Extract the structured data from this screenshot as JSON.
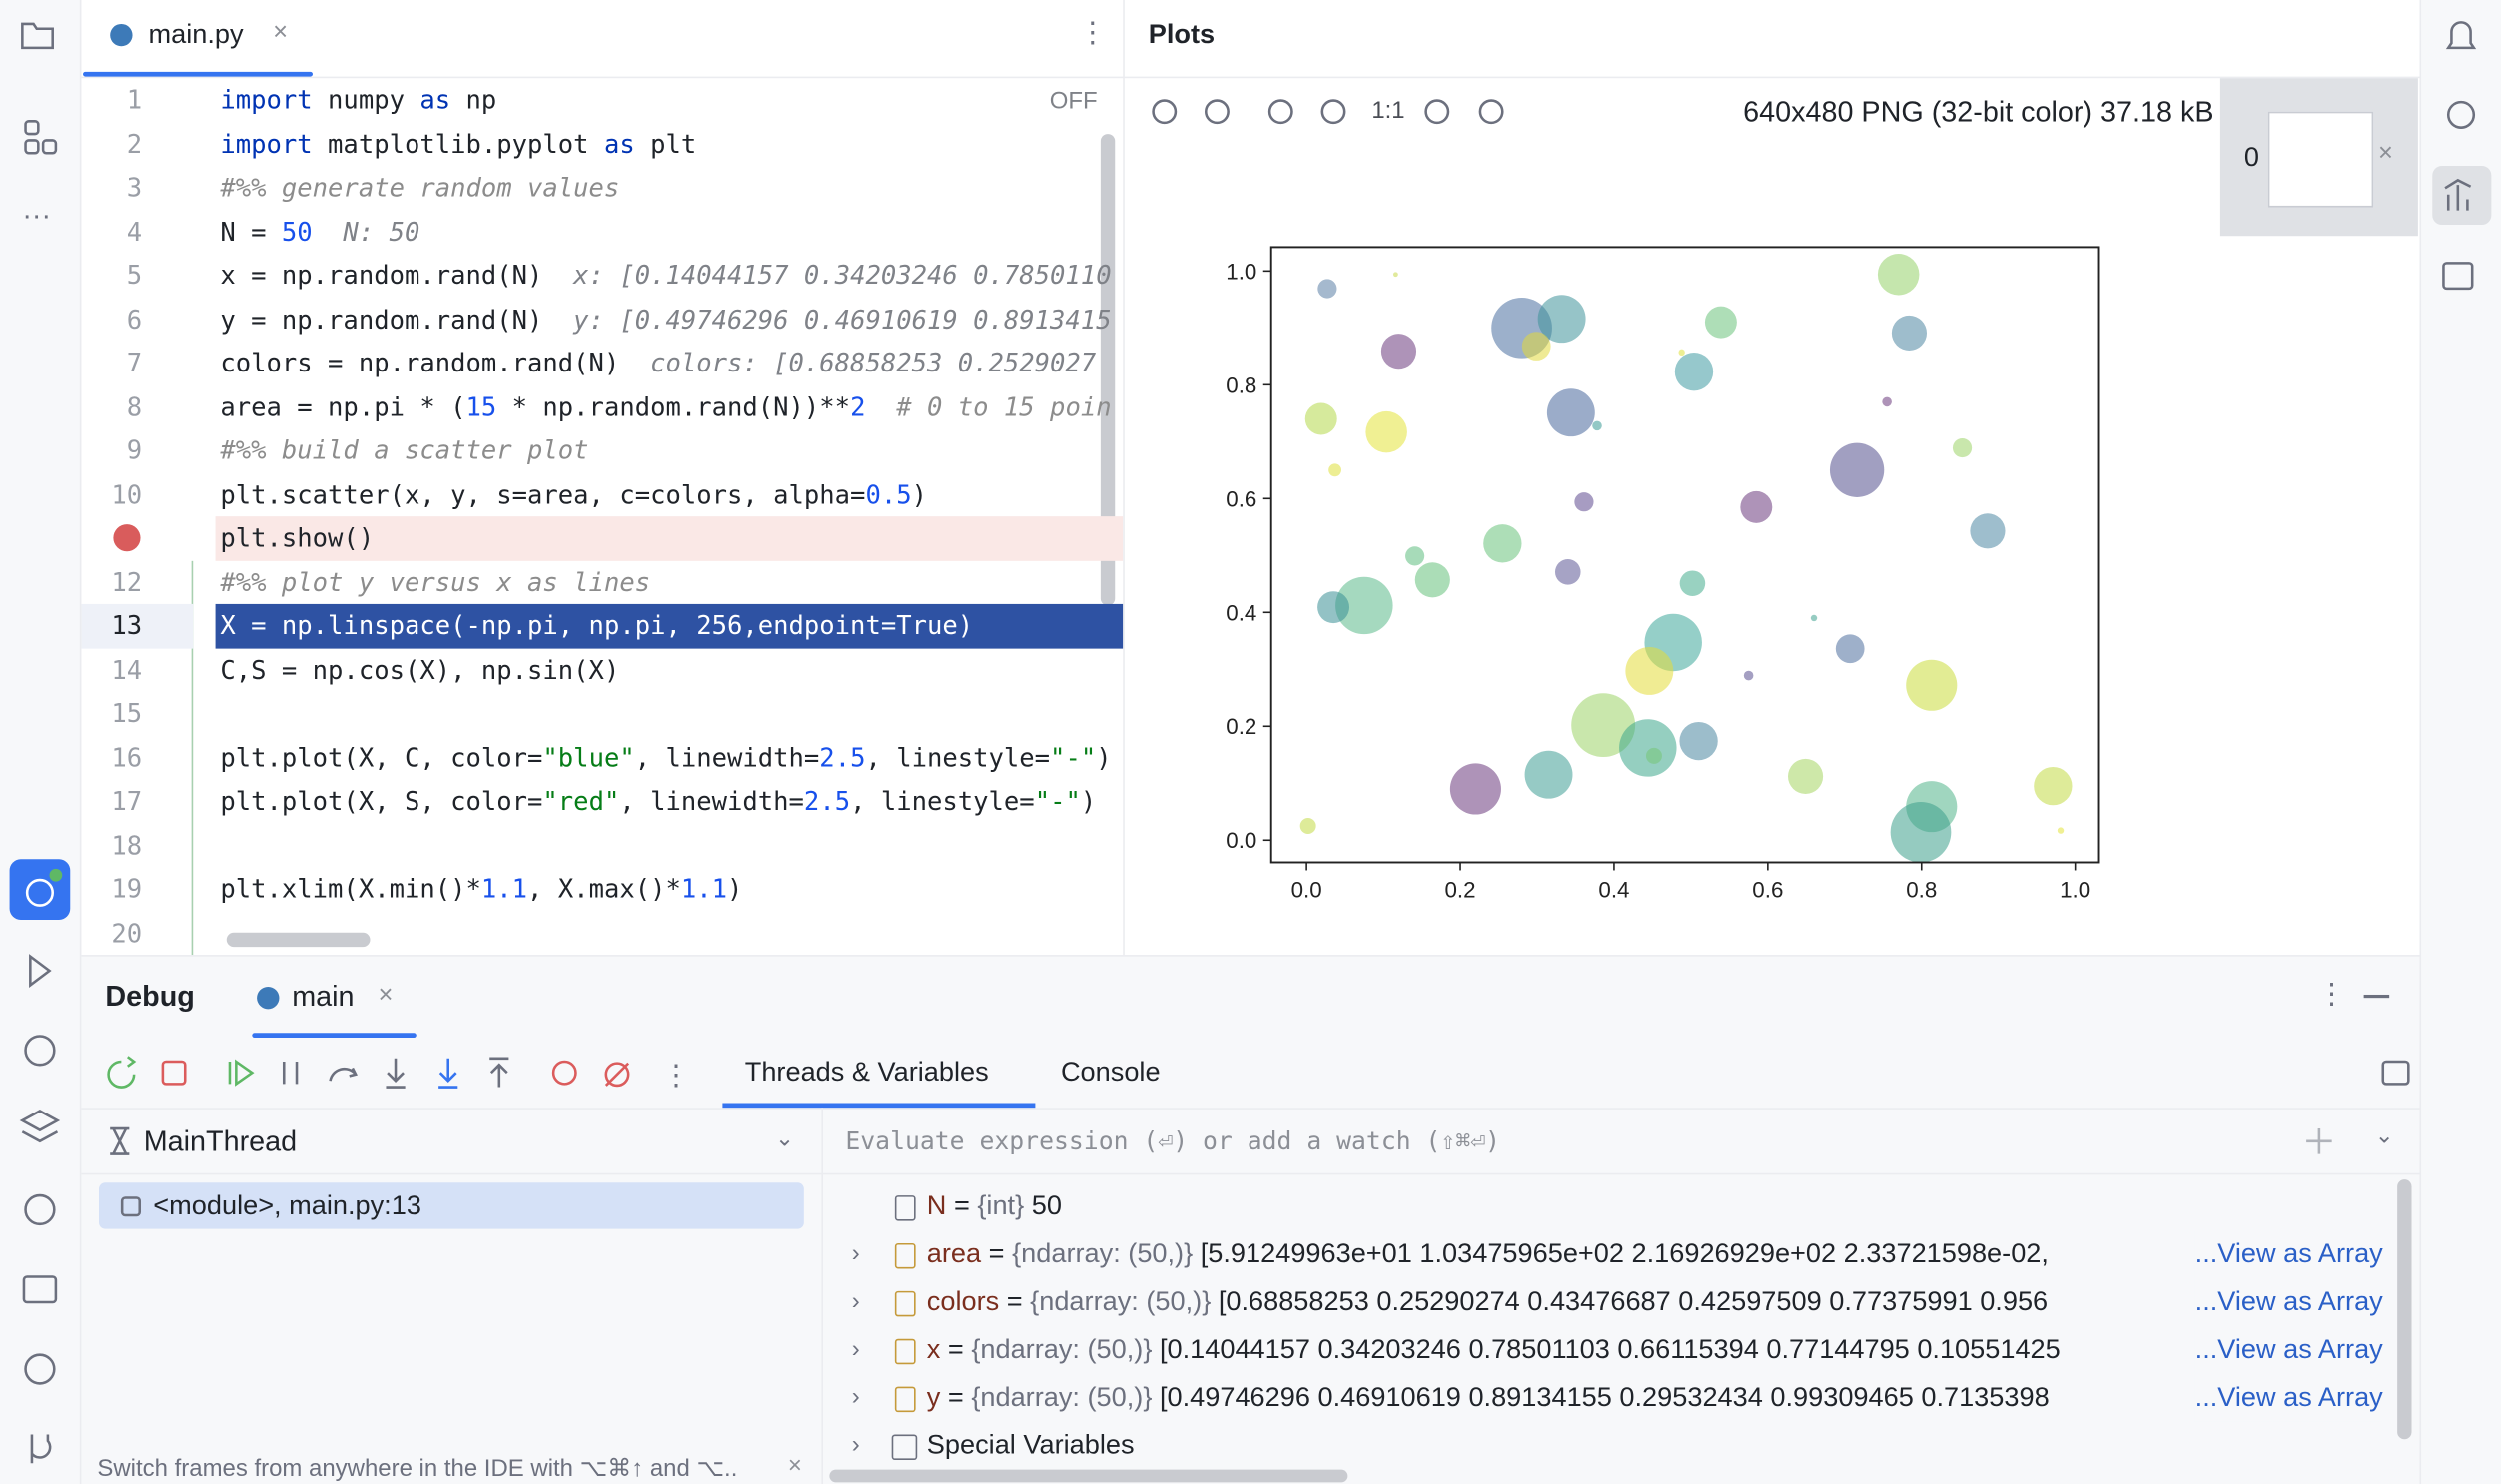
{
  "editor": {
    "tab": "main.py",
    "inspection": "OFF",
    "lines": [
      {
        "n": 1,
        "code": [
          [
            "import",
            "#0033b3"
          ],
          [
            " numpy "
          ],
          [
            "as",
            "#0033b3"
          ],
          [
            " np"
          ]
        ]
      },
      {
        "n": 2,
        "code": [
          [
            "import",
            "#0033b3"
          ],
          [
            " matplotlib.pyplot "
          ],
          [
            "as",
            "#0033b3"
          ],
          [
            " plt"
          ]
        ]
      },
      {
        "n": 3,
        "code": [],
        "comment": "#%% generate random values"
      },
      {
        "n": 4,
        "code": [
          [
            "N = "
          ],
          [
            "50",
            "#1750eb"
          ]
        ],
        "hint": "N: 50"
      },
      {
        "n": 5,
        "code": [
          [
            "x = np.random.rand(N)"
          ]
        ],
        "hint": "x: [0.14044157 0.34203246 0.7850110"
      },
      {
        "n": 6,
        "code": [
          [
            "y = np.random.rand(N)"
          ]
        ],
        "hint": "y: [0.49746296 0.46910619 0.8913415"
      },
      {
        "n": 7,
        "code": [
          [
            "colors = np.random.rand(N)"
          ]
        ],
        "hint": "colors: [0.68858253 0.2529027"
      },
      {
        "n": 8,
        "code": [
          [
            "area = np.pi * ("
          ],
          [
            "15",
            "#1750eb"
          ],
          [
            " * np.random.rand(N))**"
          ],
          [
            "2",
            "#1750eb"
          ]
        ],
        "comment": "# 0 to 15 poin"
      },
      {
        "n": 9,
        "code": [],
        "comment": "#%% build a scatter plot"
      },
      {
        "n": 10,
        "code": [
          [
            "plt.scatter(x, y, s=area, c=colors, alpha="
          ],
          [
            "0.5",
            "#1750eb"
          ],
          [
            ")"
          ]
        ]
      },
      {
        "n": null,
        "code": [
          [
            "plt.show()"
          ]
        ]
      },
      {
        "n": 12,
        "code": [],
        "comment": "#%% plot y versus x as lines"
      },
      {
        "n": 13,
        "code": [
          [
            "X = np.linspace(-np.pi, np.pi, 256,endpoint=True)"
          ]
        ]
      },
      {
        "n": 14,
        "code": [
          [
            "C,S = np.cos(X), np.sin(X)"
          ]
        ]
      },
      {
        "n": 15,
        "code": []
      },
      {
        "n": 16,
        "code": [
          [
            "plt.plot(X, C, color="
          ],
          [
            "\"blue\"",
            "#067d17"
          ],
          [
            ", linewidth="
          ],
          [
            "2.5",
            "#1750eb"
          ],
          [
            ", linestyle="
          ],
          [
            "\"-\"",
            "#067d17"
          ],
          [
            ")"
          ]
        ]
      },
      {
        "n": 17,
        "code": [
          [
            "plt.plot(X, S, color="
          ],
          [
            "\"red\"",
            "#067d17"
          ],
          [
            ", linewidth="
          ],
          [
            "2.5",
            "#1750eb"
          ],
          [
            ", linestyle="
          ],
          [
            "\"-\"",
            "#067d17"
          ],
          [
            ")"
          ]
        ]
      },
      {
        "n": 18,
        "code": []
      },
      {
        "n": 19,
        "code": [
          [
            "plt.xlim(X.min()*"
          ],
          [
            "1.1",
            "#1750eb"
          ],
          [
            ", X.max()*"
          ],
          [
            "1.1",
            "#1750eb"
          ],
          [
            ")"
          ]
        ]
      },
      {
        "n": 20,
        "code": []
      }
    ]
  },
  "plots": {
    "title": "Plots",
    "zoom": "1:1",
    "info": "640x480 PNG (32-bit color) 37.18 kB",
    "thumbnail_index": "0"
  },
  "chart_data": {
    "type": "scatter",
    "xlim": [
      -0.046,
      1.031
    ],
    "ylim": [
      -0.039,
      1.042
    ],
    "xticks": [
      {
        "value": 0,
        "label": "0.0"
      },
      0.2,
      0.4,
      0.6,
      0.8,
      {
        "value": 1,
        "label": "1.0"
      }
    ],
    "yticks": [
      {
        "value": 0,
        "label": "0.0"
      },
      0.2,
      0.4,
      0.6,
      0.8,
      {
        "value": 1,
        "label": "1.0"
      }
    ],
    "x": [
      0.027,
      0.12,
      0.116,
      0.28,
      0.332,
      0.299,
      0.77,
      0.784,
      0.539,
      0.504,
      0.019,
      0.104,
      0.344,
      0.378,
      0.037,
      0.716,
      0.755,
      0.853,
      0.361,
      0.585,
      0.886,
      0.255,
      0.141,
      0.164,
      0.34,
      0.502,
      0.075,
      0.035,
      0.66,
      0.477,
      0.707,
      0.446,
      0.575,
      0.813,
      0.386,
      0.444,
      0.452,
      0.51,
      0.315,
      0.22,
      0.649,
      0.813,
      0.799,
      0.971,
      0.981,
      0.002,
      0.488
    ],
    "values": [
      0.969,
      0.859,
      0.994,
      0.9,
      0.916,
      0.868,
      0.994,
      0.891,
      0.91,
      0.823,
      0.74,
      0.717,
      0.751,
      0.728,
      0.65,
      0.65,
      0.77,
      0.689,
      0.594,
      0.585,
      0.543,
      0.521,
      0.499,
      0.457,
      0.471,
      0.451,
      0.412,
      0.409,
      0.39,
      0.347,
      0.336,
      0.297,
      0.289,
      0.272,
      0.202,
      0.162,
      0.148,
      0.174,
      0.115,
      0.09,
      0.112,
      0.059,
      0.014,
      0.095,
      0.017,
      0.025,
      0.857
    ],
    "sizes": [
      6,
      11,
      1.5,
      19,
      15,
      9,
      13,
      11,
      10,
      12,
      10,
      13,
      15,
      3,
      4,
      17,
      3,
      6,
      6,
      10,
      11,
      12,
      6,
      11,
      8,
      8,
      18,
      10,
      2,
      18,
      9,
      15,
      3,
      16,
      20,
      18,
      5,
      12,
      15,
      16,
      11,
      16,
      19,
      12,
      2,
      5,
      2
    ],
    "colors": [
      "#5b7fa6",
      "#6b3a7d",
      "#c8d84a",
      "#4b6fa0",
      "#3f949b",
      "#e2d83c",
      "#95d16a",
      "#4f86a3",
      "#6cc27c",
      "#3f9aa2",
      "#b4d84a",
      "#e3e33a",
      "#48689c",
      "#3a9a96",
      "#dfe03b",
      "#53508e",
      "#6b3a7d",
      "#9cd467",
      "#5e4a8f",
      "#6b3a7d",
      "#4f88a4",
      "#6ac27c",
      "#5fbd7f",
      "#66c17b",
      "#5c5795",
      "#45ad8e",
      "#5bb98a",
      "#3b8f95",
      "#3fa28f",
      "#3ea89a",
      "#4e6f9e",
      "#e3dc3a",
      "#5a5190",
      "#cadc3d",
      "#9dd468",
      "#3ea88c",
      "#76c776",
      "#4a87a0",
      "#3f9e96",
      "#6b3a7d",
      "#a6d663",
      "#52b58b",
      "#3ea08c",
      "#c3da45",
      "#e3e33a",
      "#c3da45",
      "#dfe03b"
    ]
  },
  "debug": {
    "title": "Debug",
    "session": "main",
    "tabs": [
      "Threads & Variables",
      "Console"
    ],
    "thread": "MainThread",
    "frame": "<module>, main.py:13",
    "evaluate_placeholder": "Evaluate expression (⏎) or add a watch (⇧⌘⏎)",
    "variables": [
      {
        "name": "N",
        "type": "{int}",
        "value": "50"
      },
      {
        "name": "area",
        "type": "{ndarray: (50,)}",
        "value": "[5.91249963e+01 1.03475965e+02 2.16926929e+02 2.33721598e-02,",
        "link": "...View as Array"
      },
      {
        "name": "colors",
        "type": "{ndarray: (50,)}",
        "value": "[0.68858253 0.25290274 0.43476687 0.42597509 0.77375991 0.956",
        "link": "...View as Array"
      },
      {
        "name": "x",
        "type": "{ndarray: (50,)}",
        "value": "[0.14044157 0.34203246 0.78501103 0.66115394 0.77144795 0.10551425",
        "link": "...View as Array"
      },
      {
        "name": "y",
        "type": "{ndarray: (50,)}",
        "value": "[0.49746296 0.46910619 0.89134155 0.29532434 0.99309465 0.7135398",
        "link": "...View as Array"
      }
    ],
    "special": "Special Variables",
    "tip": "Switch frames from anywhere in the IDE with ⌥⌘↑ and ⌥.."
  }
}
